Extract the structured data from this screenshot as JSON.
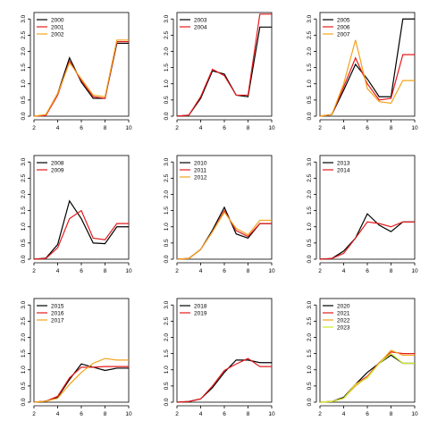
{
  "palette": {
    "black": "#000000",
    "red": "#e41a1c",
    "orange": "#f2a31c",
    "yellowgreen": "#c9e82a"
  },
  "chart_data": [
    {
      "type": "line",
      "x": [
        2,
        3,
        4,
        5,
        6,
        7,
        8,
        9,
        10
      ],
      "xlim": [
        2,
        10
      ],
      "xticks": [
        2,
        4,
        6,
        8,
        10
      ],
      "ylim": [
        0,
        3.2
      ],
      "yticks": [
        "0.0",
        "0.5",
        "1.0",
        "1.5",
        "2.0",
        "2.5",
        "3.0"
      ],
      "legend_position": "top-left",
      "series": [
        {
          "name": "2000",
          "color": "#000000",
          "values": [
            0,
            0.03,
            0.7,
            1.8,
            1.05,
            0.55,
            0.55,
            2.25,
            2.25
          ]
        },
        {
          "name": "2001",
          "color": "#e41a1c",
          "values": [
            0,
            0.02,
            0.65,
            1.7,
            1.1,
            0.6,
            0.55,
            2.3,
            2.3
          ]
        },
        {
          "name": "2002",
          "color": "#f2a31c",
          "values": [
            0,
            0.05,
            0.7,
            1.65,
            1.15,
            0.65,
            0.6,
            2.35,
            2.35
          ]
        }
      ]
    },
    {
      "type": "line",
      "x": [
        2,
        3,
        4,
        5,
        6,
        7,
        8,
        9,
        10
      ],
      "xlim": [
        2,
        10
      ],
      "xticks": [
        2,
        4,
        6,
        8,
        10
      ],
      "ylim": [
        0,
        3.2
      ],
      "yticks": [
        "0.0",
        "0.5",
        "1.0",
        "1.5",
        "2.0",
        "2.5",
        "3.0"
      ],
      "legend_position": "top-left",
      "series": [
        {
          "name": "2003",
          "color": "#000000",
          "values": [
            0,
            0.03,
            0.55,
            1.4,
            1.3,
            0.65,
            0.6,
            2.75,
            2.75
          ]
        },
        {
          "name": "2004",
          "color": "#e41a1c",
          "values": [
            0,
            0.03,
            0.6,
            1.45,
            1.25,
            0.65,
            0.65,
            3.15,
            3.15
          ]
        }
      ]
    },
    {
      "type": "line",
      "x": [
        2,
        3,
        4,
        5,
        6,
        7,
        8,
        9,
        10
      ],
      "xlim": [
        2,
        10
      ],
      "xticks": [
        2,
        4,
        6,
        8,
        10
      ],
      "ylim": [
        0,
        3.2
      ],
      "yticks": [
        "0.0",
        "0.5",
        "1.0",
        "1.5",
        "2.0",
        "2.5",
        "3.0"
      ],
      "legend_position": "top-left",
      "series": [
        {
          "name": "2005",
          "color": "#000000",
          "values": [
            0,
            0.05,
            0.8,
            1.6,
            1.15,
            0.6,
            0.6,
            3.0,
            3.0
          ]
        },
        {
          "name": "2006",
          "color": "#e41a1c",
          "values": [
            0,
            0.05,
            0.9,
            1.8,
            1.0,
            0.5,
            0.55,
            1.9,
            1.9
          ]
        },
        {
          "name": "2007",
          "color": "#f2a31c",
          "values": [
            0,
            0.05,
            1.0,
            2.35,
            0.85,
            0.45,
            0.4,
            1.1,
            1.1
          ]
        }
      ]
    },
    {
      "type": "line",
      "x": [
        2,
        3,
        4,
        5,
        6,
        7,
        8,
        9,
        10
      ],
      "xlim": [
        2,
        10
      ],
      "xticks": [
        2,
        4,
        6,
        8,
        10
      ],
      "ylim": [
        0,
        3.2
      ],
      "yticks": [
        "0.0",
        "0.5",
        "1.0",
        "1.5",
        "2.0",
        "2.5",
        "3.0"
      ],
      "legend_position": "top-left",
      "series": [
        {
          "name": "2008",
          "color": "#000000",
          "values": [
            0,
            0.03,
            0.45,
            1.8,
            1.25,
            0.5,
            0.48,
            1.0,
            1.0
          ]
        },
        {
          "name": "2009",
          "color": "#e41a1c",
          "values": [
            0,
            0.02,
            0.35,
            1.25,
            1.5,
            0.65,
            0.6,
            1.1,
            1.1
          ]
        }
      ]
    },
    {
      "type": "line",
      "x": [
        2,
        3,
        4,
        5,
        6,
        7,
        8,
        9,
        10
      ],
      "xlim": [
        2,
        10
      ],
      "xticks": [
        2,
        4,
        6,
        8,
        10
      ],
      "ylim": [
        0,
        3.2
      ],
      "yticks": [
        "0.0",
        "0.5",
        "1.0",
        "1.5",
        "2.0",
        "2.5",
        "3.0"
      ],
      "legend_position": "top-left",
      "series": [
        {
          "name": "2010",
          "color": "#000000",
          "values": [
            0,
            0.02,
            0.3,
            0.9,
            1.6,
            0.78,
            0.65,
            1.1,
            1.1
          ]
        },
        {
          "name": "2011",
          "color": "#e41a1c",
          "values": [
            0,
            0.02,
            0.3,
            0.85,
            1.5,
            0.88,
            0.7,
            1.1,
            1.1
          ]
        },
        {
          "name": "2012",
          "color": "#f2a31c",
          "values": [
            0,
            0.02,
            0.3,
            0.85,
            1.45,
            0.95,
            0.75,
            1.2,
            1.2
          ]
        }
      ]
    },
    {
      "type": "line",
      "x": [
        2,
        3,
        4,
        5,
        6,
        7,
        8,
        9,
        10
      ],
      "xlim": [
        2,
        10
      ],
      "xticks": [
        2,
        4,
        6,
        8,
        10
      ],
      "ylim": [
        0,
        3.2
      ],
      "yticks": [
        "0.0",
        "0.5",
        "1.0",
        "1.5",
        "2.0",
        "2.5",
        "3.0"
      ],
      "legend_position": "top-left",
      "series": [
        {
          "name": "2013",
          "color": "#000000",
          "values": [
            0,
            0.02,
            0.25,
            0.65,
            1.4,
            1.05,
            0.85,
            1.15,
            1.15
          ]
        },
        {
          "name": "2014",
          "color": "#e41a1c",
          "values": [
            0,
            0.02,
            0.18,
            0.65,
            1.15,
            1.1,
            1.0,
            1.15,
            1.15
          ]
        }
      ]
    },
    {
      "type": "line",
      "x": [
        2,
        3,
        4,
        5,
        6,
        7,
        8,
        9,
        10
      ],
      "xlim": [
        2,
        10
      ],
      "xticks": [
        2,
        4,
        6,
        8,
        10
      ],
      "ylim": [
        0,
        3.2
      ],
      "yticks": [
        "0.0",
        "0.5",
        "1.0",
        "1.5",
        "2.0",
        "2.5",
        "3.0"
      ],
      "legend_position": "top-left",
      "series": [
        {
          "name": "2015",
          "color": "#000000",
          "values": [
            0,
            0.03,
            0.15,
            0.7,
            1.18,
            1.08,
            0.98,
            1.05,
            1.05
          ]
        },
        {
          "name": "2016",
          "color": "#e41a1c",
          "values": [
            0,
            0.03,
            0.18,
            0.75,
            1.08,
            1.08,
            1.1,
            1.1,
            1.1
          ]
        },
        {
          "name": "2017",
          "color": "#f2a31c",
          "values": [
            0,
            0.03,
            0.12,
            0.55,
            0.92,
            1.2,
            1.35,
            1.3,
            1.3
          ]
        }
      ]
    },
    {
      "type": "line",
      "x": [
        2,
        3,
        4,
        5,
        6,
        7,
        8,
        9,
        10
      ],
      "xlim": [
        2,
        10
      ],
      "xticks": [
        2,
        4,
        6,
        8,
        10
      ],
      "ylim": [
        0,
        3.2
      ],
      "yticks": [
        "0.0",
        "0.5",
        "1.0",
        "1.5",
        "2.0",
        "2.5",
        "3.0"
      ],
      "legend_position": "top-left",
      "series": [
        {
          "name": "2018",
          "color": "#000000",
          "values": [
            0,
            0.02,
            0.1,
            0.45,
            0.92,
            1.3,
            1.3,
            1.22,
            1.22
          ]
        },
        {
          "name": "2019",
          "color": "#e41a1c",
          "values": [
            0,
            0.02,
            0.1,
            0.5,
            0.98,
            1.18,
            1.35,
            1.1,
            1.1
          ]
        }
      ]
    },
    {
      "type": "line",
      "x": [
        2,
        3,
        4,
        5,
        6,
        7,
        8,
        9,
        10
      ],
      "xlim": [
        2,
        10
      ],
      "xticks": [
        2,
        4,
        6,
        8,
        10
      ],
      "ylim": [
        0,
        3.2
      ],
      "yticks": [
        "0.0",
        "0.5",
        "1.0",
        "1.5",
        "2.0",
        "2.5",
        "3.0"
      ],
      "legend_position": "top-left",
      "series": [
        {
          "name": "2020",
          "color": "#000000",
          "values": [
            0,
            0.02,
            0.15,
            0.55,
            0.92,
            1.2,
            1.45,
            1.2,
            1.2
          ]
        },
        {
          "name": "2021",
          "color": "#e41a1c",
          "values": [
            0,
            0.02,
            0.12,
            0.55,
            0.8,
            1.22,
            1.55,
            1.5,
            1.5
          ]
        },
        {
          "name": "2022",
          "color": "#f2a31c",
          "values": [
            0,
            0.02,
            0.12,
            0.5,
            0.78,
            1.2,
            1.6,
            1.45,
            1.45
          ]
        },
        {
          "name": "2023",
          "color": "#c9e82a",
          "values": [
            0,
            0.02,
            0.12,
            0.55,
            0.75,
            1.2,
            1.5,
            1.2,
            1.2
          ]
        }
      ]
    }
  ]
}
